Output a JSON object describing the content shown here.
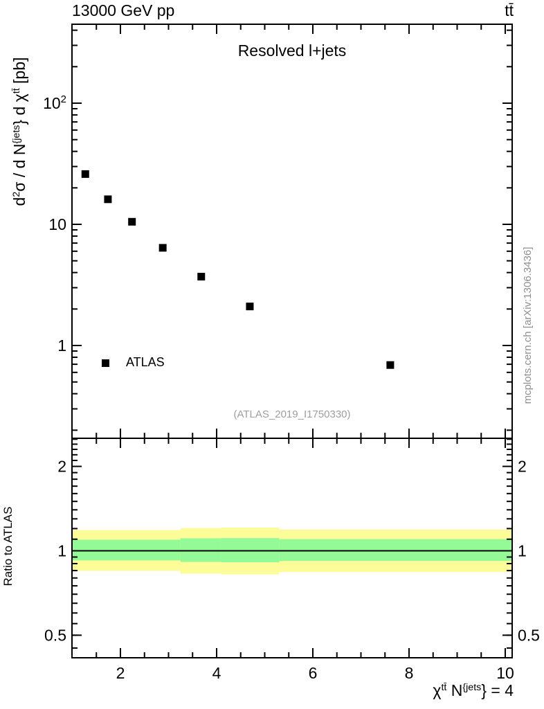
{
  "header": {
    "beam": "13000 GeV pp",
    "process": "tt̄"
  },
  "panel_title": "Resolved l+jets",
  "watermark": "(ATLAS_2019_I1750330)",
  "side_note": "mcplots.cern.ch [arXiv:1306.3436]",
  "legend": {
    "label": "ATLAS",
    "marker": "filled-square",
    "marker_color": "#000000"
  },
  "axes": {
    "y_main_label_parts": [
      {
        "t": "d"
      },
      {
        "t": "2",
        "sup": true
      },
      {
        "t": "σ / d N"
      },
      {
        "t": "{jets",
        "sup": true
      },
      {
        "t": "} d χ"
      },
      {
        "t": "tt̄",
        "sup": true
      },
      {
        "t": " [pb]"
      }
    ],
    "x_label_parts": [
      {
        "t": "χ"
      },
      {
        "t": "tt̄",
        "sup": true
      },
      {
        "t": " N"
      },
      {
        "t": "{jets",
        "sup": true
      },
      {
        "t": "} = 4"
      }
    ],
    "ratio_label": "Ratio to ATLAS"
  },
  "chart_data": {
    "type": "scatter",
    "title": "Resolved l+jets",
    "xlabel": "chi^{tt} N^{jets} = 4",
    "ylabel": "d2sigma / d N^{jets} d chi^{tt} [pb]",
    "x_range": [
      1.0,
      10.15
    ],
    "x_ticks_major": [
      2,
      4,
      6,
      8,
      10
    ],
    "x_tick_minor_step": 0.5,
    "main_panel": {
      "y_scale": "log",
      "y_range": [
        0.171,
        448
      ],
      "y_ticks_major": [
        1,
        10,
        100
      ],
      "series": [
        {
          "name": "ATLAS",
          "marker": "filled-square",
          "color": "#000000",
          "x": [
            1.27,
            1.74,
            2.24,
            2.88,
            3.68,
            4.69,
            7.61
          ],
          "y": [
            26.0,
            16.1,
            10.5,
            6.4,
            3.7,
            2.1,
            0.69
          ]
        }
      ]
    },
    "ratio_panel": {
      "ylabel": "Ratio to ATLAS",
      "y_scale": "log",
      "y_range": [
        0.416,
        2.52
      ],
      "y_ticks_major": [
        0.5,
        1,
        2
      ],
      "unity_line": 1.0,
      "band_edges_x": [
        1.0,
        3.25,
        4.1,
        5.3,
        10.15
      ],
      "yellow_band": [
        [
          0.848,
          1.186
        ],
        [
          0.829,
          1.206
        ],
        [
          0.824,
          1.21
        ],
        [
          0.84,
          1.19
        ]
      ],
      "green_band": [
        [
          0.924,
          1.095
        ],
        [
          0.913,
          1.108
        ],
        [
          0.91,
          1.11
        ],
        [
          0.92,
          1.1
        ]
      ],
      "band_colors": {
        "yellow": "#fcfc98",
        "green": "#94fa98"
      }
    }
  }
}
